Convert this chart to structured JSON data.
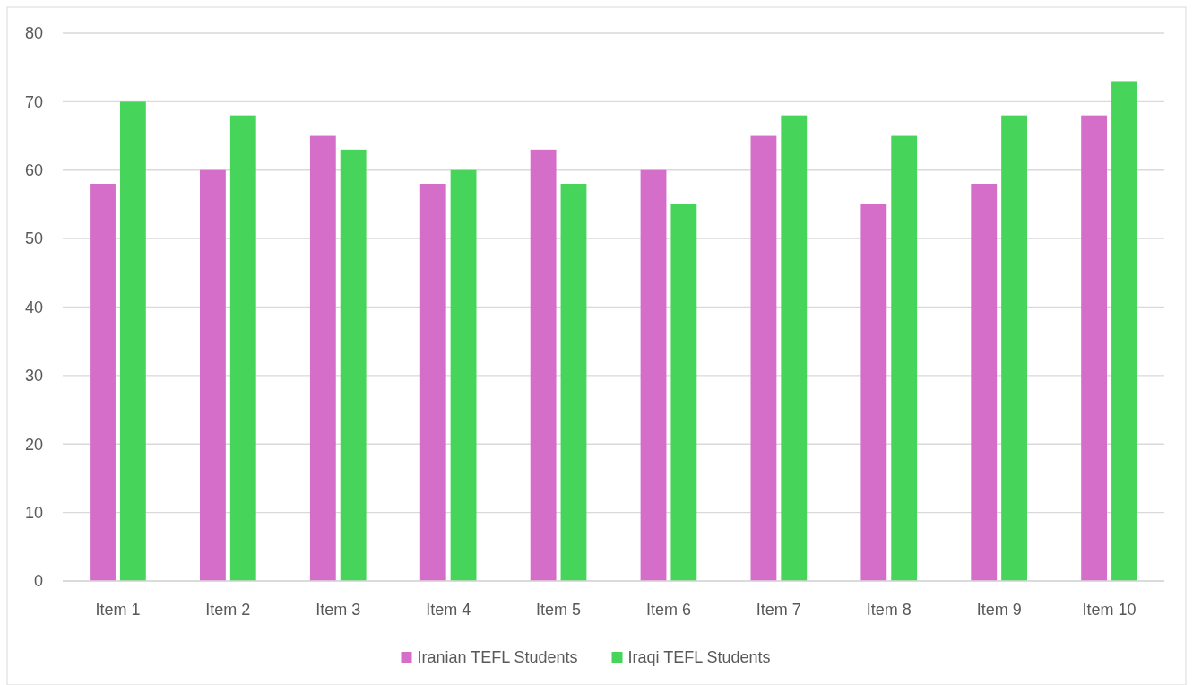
{
  "chart_data": {
    "type": "bar",
    "categories": [
      "Item 1",
      "Item 2",
      "Item 3",
      "Item 4",
      "Item 5",
      "Item 6",
      "Item 7",
      "Item 8",
      "Item 9",
      "Item 10"
    ],
    "series": [
      {
        "name": "Iranian TEFL Students",
        "color": "#d56ec9",
        "values": [
          58,
          60,
          65,
          58,
          63,
          60,
          65,
          55,
          58,
          68
        ]
      },
      {
        "name": "Iraqi TEFL Students",
        "color": "#47d45a",
        "values": [
          70,
          68,
          63,
          60,
          58,
          55,
          68,
          65,
          68,
          73
        ]
      }
    ],
    "ylim": [
      0,
      80
    ],
    "yticks": [
      0,
      10,
      20,
      30,
      40,
      50,
      60,
      70,
      80
    ],
    "grid": "y",
    "legend": "bottom"
  }
}
